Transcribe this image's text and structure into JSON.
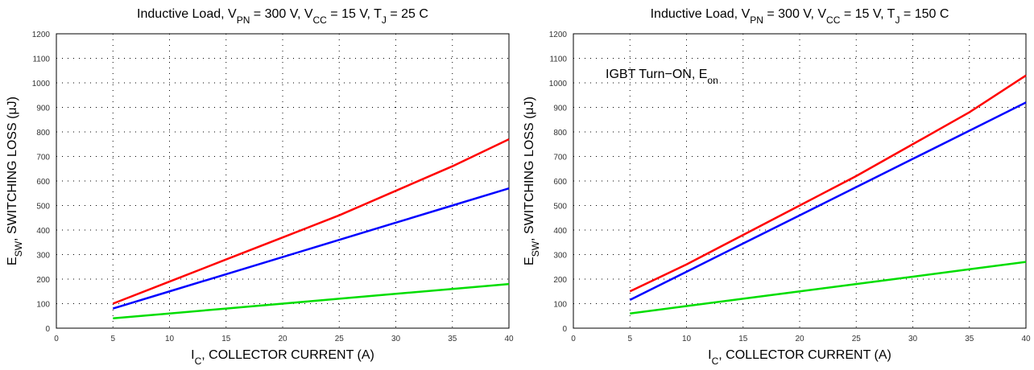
{
  "chart_data": [
    {
      "type": "line",
      "title": [
        "Inductive Load, V",
        "PN",
        " = 300 V, V",
        "CC",
        " = 15 V, T",
        "J",
        " = 25 C"
      ],
      "ylabel": [
        "E",
        "SW",
        ", SWITCHING LOSS (μJ)"
      ],
      "xlabel": [
        "I",
        "C",
        ", COLLECTOR CURRENT (A)"
      ],
      "x": [
        5,
        10,
        15,
        20,
        25,
        30,
        35,
        40
      ],
      "series": [
        {
          "color": "#ff0000",
          "values": [
            100,
            190,
            280,
            370,
            460,
            560,
            660,
            770
          ]
        },
        {
          "color": "#0000ff",
          "values": [
            80,
            150,
            220,
            290,
            360,
            430,
            500,
            570
          ]
        },
        {
          "color": "#00dd00",
          "values": [
            40,
            60,
            80,
            100,
            120,
            140,
            160,
            180
          ]
        }
      ],
      "xlim": [
        0,
        40
      ],
      "xticks": [
        0,
        5,
        10,
        15,
        20,
        25,
        30,
        35,
        40
      ],
      "ylim": [
        0,
        1200
      ],
      "yticks": [
        0,
        100,
        200,
        300,
        400,
        500,
        600,
        700,
        800,
        900,
        1000,
        1100,
        1200
      ],
      "grid": true
    },
    {
      "type": "line",
      "title": [
        "Inductive Load, V",
        "PN",
        " = 300 V, V",
        "CC",
        " = 15 V, T",
        "J",
        " = 150 C"
      ],
      "ylabel": [
        "E",
        "SW",
        ", SWITCHING LOSS (μJ)"
      ],
      "xlabel": [
        "I",
        "C",
        ", COLLECTOR CURRENT (A)"
      ],
      "annotation": [
        "IGBT Turn−ON, E",
        "on"
      ],
      "x": [
        5,
        10,
        15,
        20,
        25,
        30,
        35,
        40
      ],
      "series": [
        {
          "color": "#ff0000",
          "values": [
            150,
            260,
            380,
            500,
            620,
            750,
            880,
            1030
          ]
        },
        {
          "color": "#0000ff",
          "values": [
            115,
            230,
            345,
            460,
            575,
            690,
            805,
            920
          ]
        },
        {
          "color": "#00dd00",
          "values": [
            60,
            90,
            120,
            150,
            180,
            210,
            240,
            270
          ]
        }
      ],
      "xlim": [
        0,
        40
      ],
      "xticks": [
        0,
        5,
        10,
        15,
        20,
        25,
        30,
        35,
        40
      ],
      "ylim": [
        0,
        1200
      ],
      "yticks": [
        0,
        100,
        200,
        300,
        400,
        500,
        600,
        700,
        800,
        900,
        1000,
        1100,
        1200
      ],
      "grid": true
    }
  ]
}
